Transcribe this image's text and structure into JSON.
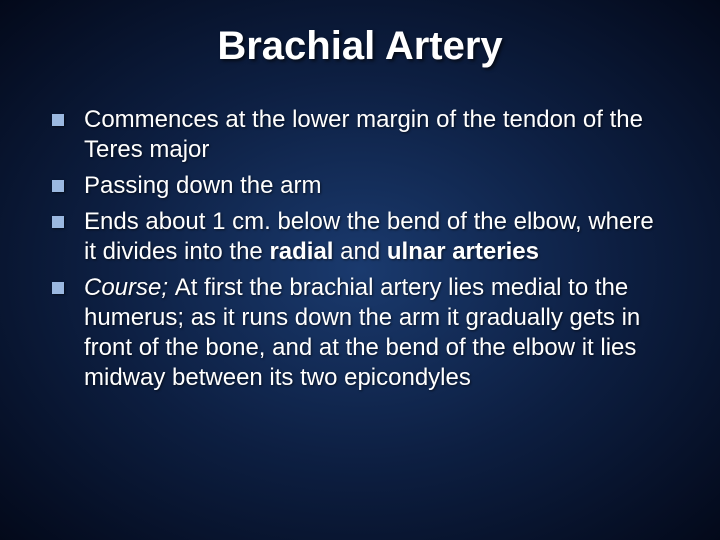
{
  "slide": {
    "title": "Brachial Artery",
    "background_gradient": [
      "#1a3a6e",
      "#0d1f42",
      "#03091a"
    ],
    "title_color": "#ffffff",
    "title_fontsize": 40,
    "body_color": "#ffffff",
    "body_fontsize": 24,
    "bullet_marker_color": "#9bb8e0",
    "bullets": [
      {
        "runs": [
          {
            "text": "Commences at the lower margin of the tendon of the Teres major"
          }
        ]
      },
      {
        "runs": [
          {
            "text": "Passing down the arm"
          }
        ]
      },
      {
        "runs": [
          {
            "text": "Ends about 1 cm. below the bend of the elbow, where it divides into the "
          },
          {
            "text": "radial ",
            "bold": true
          },
          {
            "text": "and "
          },
          {
            "text": "ulnar arteries",
            "bold": true
          }
        ]
      },
      {
        "runs": [
          {
            "text": "Course; ",
            "italic": true
          },
          {
            "text": "At first the brachial artery lies medial to the humerus; as it runs down the arm it gradually gets in front of the bone, and at the bend of the elbow it lies midway between its two epicondyles"
          }
        ]
      }
    ]
  }
}
